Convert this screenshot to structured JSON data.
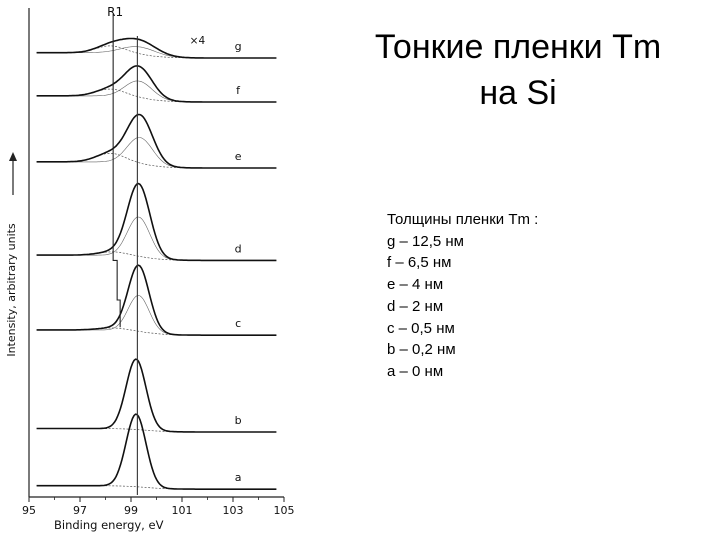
{
  "slide": {
    "title_line1": "Тонкие пленки Tm",
    "title_line2": "на Si",
    "thickness_heading": "Толщины пленки Tm :",
    "thickness_items": [
      "g – 12,5 нм",
      "f – 6,5 нм",
      "e – 4 нм",
      "d – 2 нм",
      "c – 0,5 нм",
      "b – 0,2 нм",
      "a – 0 нм"
    ]
  },
  "chart_data": {
    "type": "line",
    "xlabel": "Binding energy, eV",
    "ylabel": "Intensity, arbitrary units",
    "xlim": [
      95,
      105
    ],
    "x_ticks": [
      95,
      97,
      99,
      101,
      103,
      105
    ],
    "x_tick_labels": [
      "95",
      "97",
      "99",
      "101",
      "103",
      "105"
    ],
    "marker_label": "R1",
    "marker_x": 98.3,
    "multiplier_label": "×4",
    "series": [
      {
        "name": "g",
        "baseline": 0.0,
        "bg_left": 0.012,
        "bg_right": 0.0,
        "peak_height": 0.032,
        "peak_center": 99.3,
        "peak_width": 0.95,
        "shoulder_height": 0.016,
        "shoulder_center": 98.2
      },
      {
        "name": "f",
        "baseline": 0.1,
        "bg_left": 0.014,
        "bg_right": 0.0,
        "peak_height": 0.07,
        "peak_center": 99.3,
        "peak_width": 0.75,
        "shoulder_height": 0.016,
        "shoulder_center": 98.2
      },
      {
        "name": "e",
        "baseline": 0.25,
        "bg_left": 0.014,
        "bg_right": 0.0,
        "peak_height": 0.11,
        "peak_center": 99.35,
        "peak_width": 0.7,
        "shoulder_height": 0.02,
        "shoulder_center": 98.2
      },
      {
        "name": "d",
        "baseline": 0.46,
        "bg_left": 0.012,
        "bg_right": 0.0,
        "peak_height": 0.165,
        "peak_center": 99.3,
        "peak_width": 0.62,
        "shoulder_height": 0.008,
        "shoulder_center": 98.3
      },
      {
        "name": "c",
        "baseline": 0.63,
        "bg_left": 0.012,
        "bg_right": 0.0,
        "peak_height": 0.15,
        "peak_center": 99.3,
        "peak_width": 0.58,
        "shoulder_height": 0.005,
        "shoulder_center": 98.3
      },
      {
        "name": "b",
        "baseline": 0.85,
        "bg_left": 0.008,
        "bg_right": 0.0,
        "peak_height": 0.16,
        "peak_center": 99.2,
        "peak_width": 0.55,
        "shoulder_height": 0.0,
        "shoulder_center": 98.3
      },
      {
        "name": "a",
        "baseline": 0.98,
        "bg_left": 0.008,
        "bg_right": 0.0,
        "peak_height": 0.165,
        "peak_center": 99.2,
        "peak_width": 0.55,
        "shoulder_height": 0.0,
        "shoulder_center": 98.3
      }
    ]
  }
}
